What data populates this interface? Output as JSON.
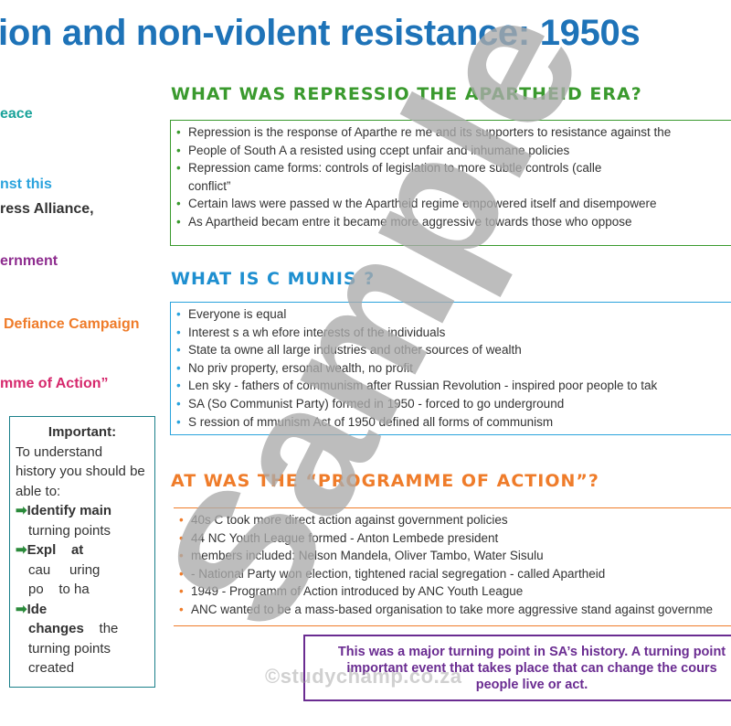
{
  "title": "ion and non-violent resistance: 1950s",
  "left_column": {
    "items": [
      {
        "text": "eace",
        "color": "#1aa39a"
      },
      {
        "text": "nst this",
        "color": "#2aa3dd"
      },
      {
        "text": "ress Alliance,",
        "color": "#333333"
      },
      {
        "text": "ernment",
        "color": "#8e2d8f"
      },
      {
        "text": "Defiance Campaign",
        "color": "#ef7c2a"
      },
      {
        "text": "mme of Action”",
        "color": "#d6286c"
      }
    ]
  },
  "important_box": {
    "title": "Important:",
    "intro_lines": [
      "To understand",
      "history you should be",
      "able to:"
    ],
    "points": [
      {
        "arrow": "➡",
        "head": "Identify main",
        "cont": "turning points"
      },
      {
        "arrow": "➡",
        "head": "Expl",
        "head_rest": "at",
        "cont": [
          "cau",
          "uring",
          "po",
          "to ha"
        ]
      },
      {
        "arrow": "➡",
        "head": "Ide",
        "cont_lines": [
          "changes",
          "the",
          "turning points",
          "created"
        ]
      }
    ]
  },
  "sections": [
    {
      "heading": "WHAT WAS REPRESSIO      THE APARTHEID ERA?",
      "bullets": [
        "Repression is the response of      Aparthe   re   me and its supporters to resistance against the",
        "People of South A   a resisted     using     ccept unfair and inhumane policies",
        "Repression came        forms:            controls of legislation to more subtle controls (calle",
        "conflict”",
        "Certain laws were passed w          the Apartheid regime empowered itself and disempowere",
        "As Apartheid becam       entre        it became more aggressive towards those who oppose"
      ]
    },
    {
      "heading": "WHAT IS C     MUNIS   ?",
      "bullets": [
        "Everyone is equal",
        "Interest       s a wh       efore interests of the individuals",
        "State ta     owne     all large industries and other sources of wealth",
        "No priv     property,     ersonal wealth, no profit",
        "Len      sky - fathers of communism after Russian Revolution - inspired poor people to tak",
        "SA    (So         Communist Party) formed in 1950 - forced to go underground",
        "S      ression of       mmunism Act of 1950 defined all forms of communism"
      ]
    },
    {
      "heading": "  AT WAS THE “PROGRAMME OF ACTION”?",
      "bullets": [
        "  40s     C took more direct action against government policies",
        "  44     NC Youth League formed - Anton Lembede president",
        "        members included: Nelson Mandela, Oliver Tambo, Water Sisulu",
        "       - National Party won election, tightened racial segregation - called Apartheid",
        "1949 - Programm of Action introduced by ANC Youth League",
        "ANC wanted to be a mass-based organisation to take more aggressive stand against governme"
      ]
    }
  ],
  "callout": {
    "lines": [
      "This was a major turning point in SA’s history. A turning point",
      "important event that takes place that can change the cours",
      "people live or act."
    ]
  },
  "watermark": {
    "text": "Sample",
    "site": "©studychamp.co.za"
  }
}
